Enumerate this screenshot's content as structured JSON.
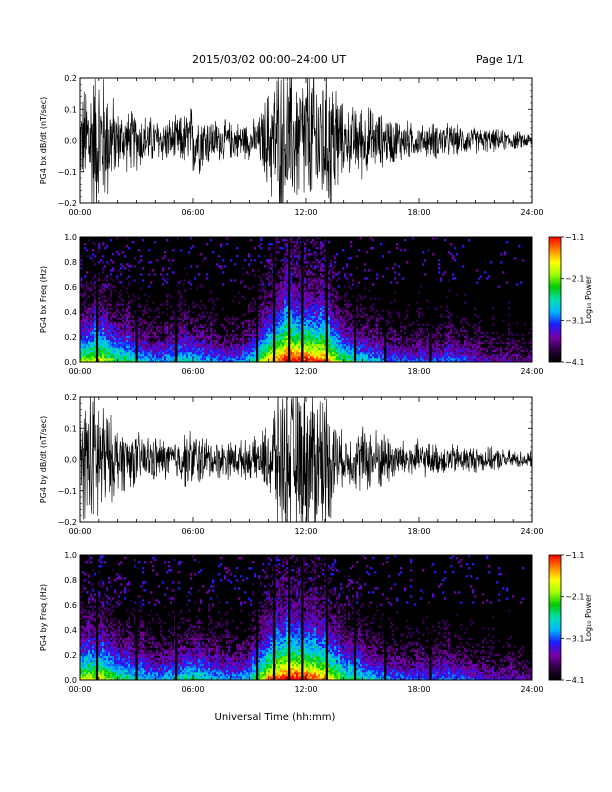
{
  "header": {
    "title": "2015/03/02   00:00–24:00  UT",
    "page": "Page  1/1"
  },
  "xlabel": "Universal Time (hh:mm)",
  "colors": {
    "trace": "#000000",
    "spectro_bg": "#000000",
    "colormap": [
      "#000000",
      "#2a0040",
      "#7a00a8",
      "#1a1aff",
      "#00b4ff",
      "#00e0b0",
      "#00c800",
      "#a0ff00",
      "#ffff00",
      "#ff8000",
      "#ff0000"
    ]
  },
  "chart_data": [
    {
      "type": "line",
      "id": "bx_ts",
      "ylabel": "PG4 bx dB/dt (nT/sec)",
      "xlim": [
        "00:00",
        "24:00"
      ],
      "x_ticks": [
        "00:00",
        "06:00",
        "12:00",
        "18:00",
        "24:00"
      ],
      "ylim": [
        -0.2,
        0.2
      ],
      "y_ticks": [
        "−0.2",
        "−0.1",
        "0.0",
        "0.1",
        "0.2"
      ],
      "series": [
        {
          "x_hours": [
            0,
            0.5,
            1,
            1.5,
            2,
            3,
            4,
            5,
            5.5,
            6,
            7,
            8,
            9,
            9.5,
            10,
            10.5,
            11,
            11.5,
            12,
            12.5,
            13,
            13.5,
            14,
            15,
            16,
            17,
            18,
            19,
            20,
            21,
            22,
            23,
            24
          ],
          "envelope": [
            0.1,
            0.2,
            0.2,
            0.16,
            0.08,
            0.08,
            0.06,
            0.06,
            0.07,
            0.1,
            0.06,
            0.05,
            0.05,
            0.06,
            0.14,
            0.2,
            0.2,
            0.18,
            0.2,
            0.2,
            0.2,
            0.2,
            0.08,
            0.1,
            0.07,
            0.06,
            0.04,
            0.05,
            0.04,
            0.035,
            0.03,
            0.025,
            0.02
          ]
        }
      ]
    },
    {
      "type": "heatmap",
      "id": "bx_spec",
      "ylabel": "PG4 bx Freq (Hz)",
      "xlim": [
        "00:00",
        "24:00"
      ],
      "x_ticks": [
        "00:00",
        "06:00",
        "12:00",
        "18:00",
        "24:00"
      ],
      "ylim": [
        0.0,
        1.0
      ],
      "y_ticks": [
        "0.0",
        "0.2",
        "0.4",
        "0.6",
        "0.8",
        "1.0"
      ],
      "colorbar": {
        "label": "Log₁₀ Power",
        "ticks": [
          "−4.1",
          "−3.1",
          "−2.1",
          "−1.1"
        ],
        "range": [
          -4.1,
          -1.1
        ]
      },
      "gaps_hours": [
        0.9,
        3.0,
        5.1,
        9.4,
        10.3,
        11.1,
        11.8,
        13.1,
        14.6,
        16.2,
        18.6
      ],
      "activity": {
        "x_hours": [
          0,
          1,
          2,
          3,
          4,
          5,
          6,
          7,
          8,
          9,
          10,
          11,
          12,
          13,
          14,
          15,
          16,
          17,
          18,
          19,
          20,
          21,
          22,
          23,
          24
        ],
        "level": [
          0.6,
          0.7,
          0.55,
          0.45,
          0.35,
          0.4,
          0.45,
          0.35,
          0.3,
          0.4,
          0.75,
          0.95,
          0.9,
          0.85,
          0.55,
          0.45,
          0.35,
          0.3,
          0.28,
          0.3,
          0.32,
          0.25,
          0.2,
          0.18,
          0.15
        ]
      }
    },
    {
      "type": "line",
      "id": "by_ts",
      "ylabel": "PG4 by dB/dt (nT/sec)",
      "xlim": [
        "00:00",
        "24:00"
      ],
      "x_ticks": [
        "00:00",
        "06:00",
        "12:00",
        "18:00",
        "24:00"
      ],
      "ylim": [
        -0.2,
        0.2
      ],
      "y_ticks": [
        "−0.2",
        "−0.1",
        "0.0",
        "0.1",
        "0.2"
      ],
      "series": [
        {
          "x_hours": [
            0,
            0.5,
            1,
            1.5,
            2,
            3,
            4,
            5,
            5.5,
            6,
            7,
            8,
            9,
            9.5,
            10,
            10.5,
            11,
            11.5,
            12,
            12.5,
            13,
            13.5,
            14,
            15,
            16,
            17,
            18,
            19,
            20,
            21,
            22,
            23,
            24
          ],
          "envelope": [
            0.12,
            0.2,
            0.2,
            0.12,
            0.09,
            0.07,
            0.06,
            0.05,
            0.07,
            0.08,
            0.05,
            0.05,
            0.05,
            0.06,
            0.1,
            0.2,
            0.2,
            0.2,
            0.2,
            0.2,
            0.2,
            0.12,
            0.06,
            0.09,
            0.08,
            0.05,
            0.05,
            0.04,
            0.04,
            0.035,
            0.03,
            0.025,
            0.02
          ]
        }
      ]
    },
    {
      "type": "heatmap",
      "id": "by_spec",
      "ylabel": "PG4 by Freq (Hz)",
      "xlim": [
        "00:00",
        "24:00"
      ],
      "x_ticks": [
        "00:00",
        "06:00",
        "12:00",
        "18:00",
        "24:00"
      ],
      "ylim": [
        0.0,
        1.0
      ],
      "y_ticks": [
        "0.0",
        "0.2",
        "0.4",
        "0.6",
        "0.8",
        "1.0"
      ],
      "colorbar": {
        "label": "Log₁₀ Power",
        "ticks": [
          "−4.1",
          "−3.1",
          "−2.1",
          "−1.1"
        ],
        "range": [
          -4.1,
          -1.1
        ]
      },
      "gaps_hours": [
        0.9,
        3.0,
        5.1,
        9.4,
        10.3,
        11.1,
        11.8,
        13.1,
        14.6,
        16.2,
        18.6
      ],
      "activity": {
        "x_hours": [
          0,
          1,
          2,
          3,
          4,
          5,
          6,
          7,
          8,
          9,
          10,
          11,
          12,
          13,
          14,
          15,
          16,
          17,
          18,
          19,
          20,
          21,
          22,
          23,
          24
        ],
        "level": [
          0.65,
          0.7,
          0.55,
          0.45,
          0.38,
          0.42,
          0.5,
          0.4,
          0.35,
          0.42,
          0.8,
          0.95,
          0.9,
          0.8,
          0.55,
          0.45,
          0.38,
          0.32,
          0.3,
          0.32,
          0.34,
          0.26,
          0.22,
          0.2,
          0.16
        ]
      }
    }
  ]
}
